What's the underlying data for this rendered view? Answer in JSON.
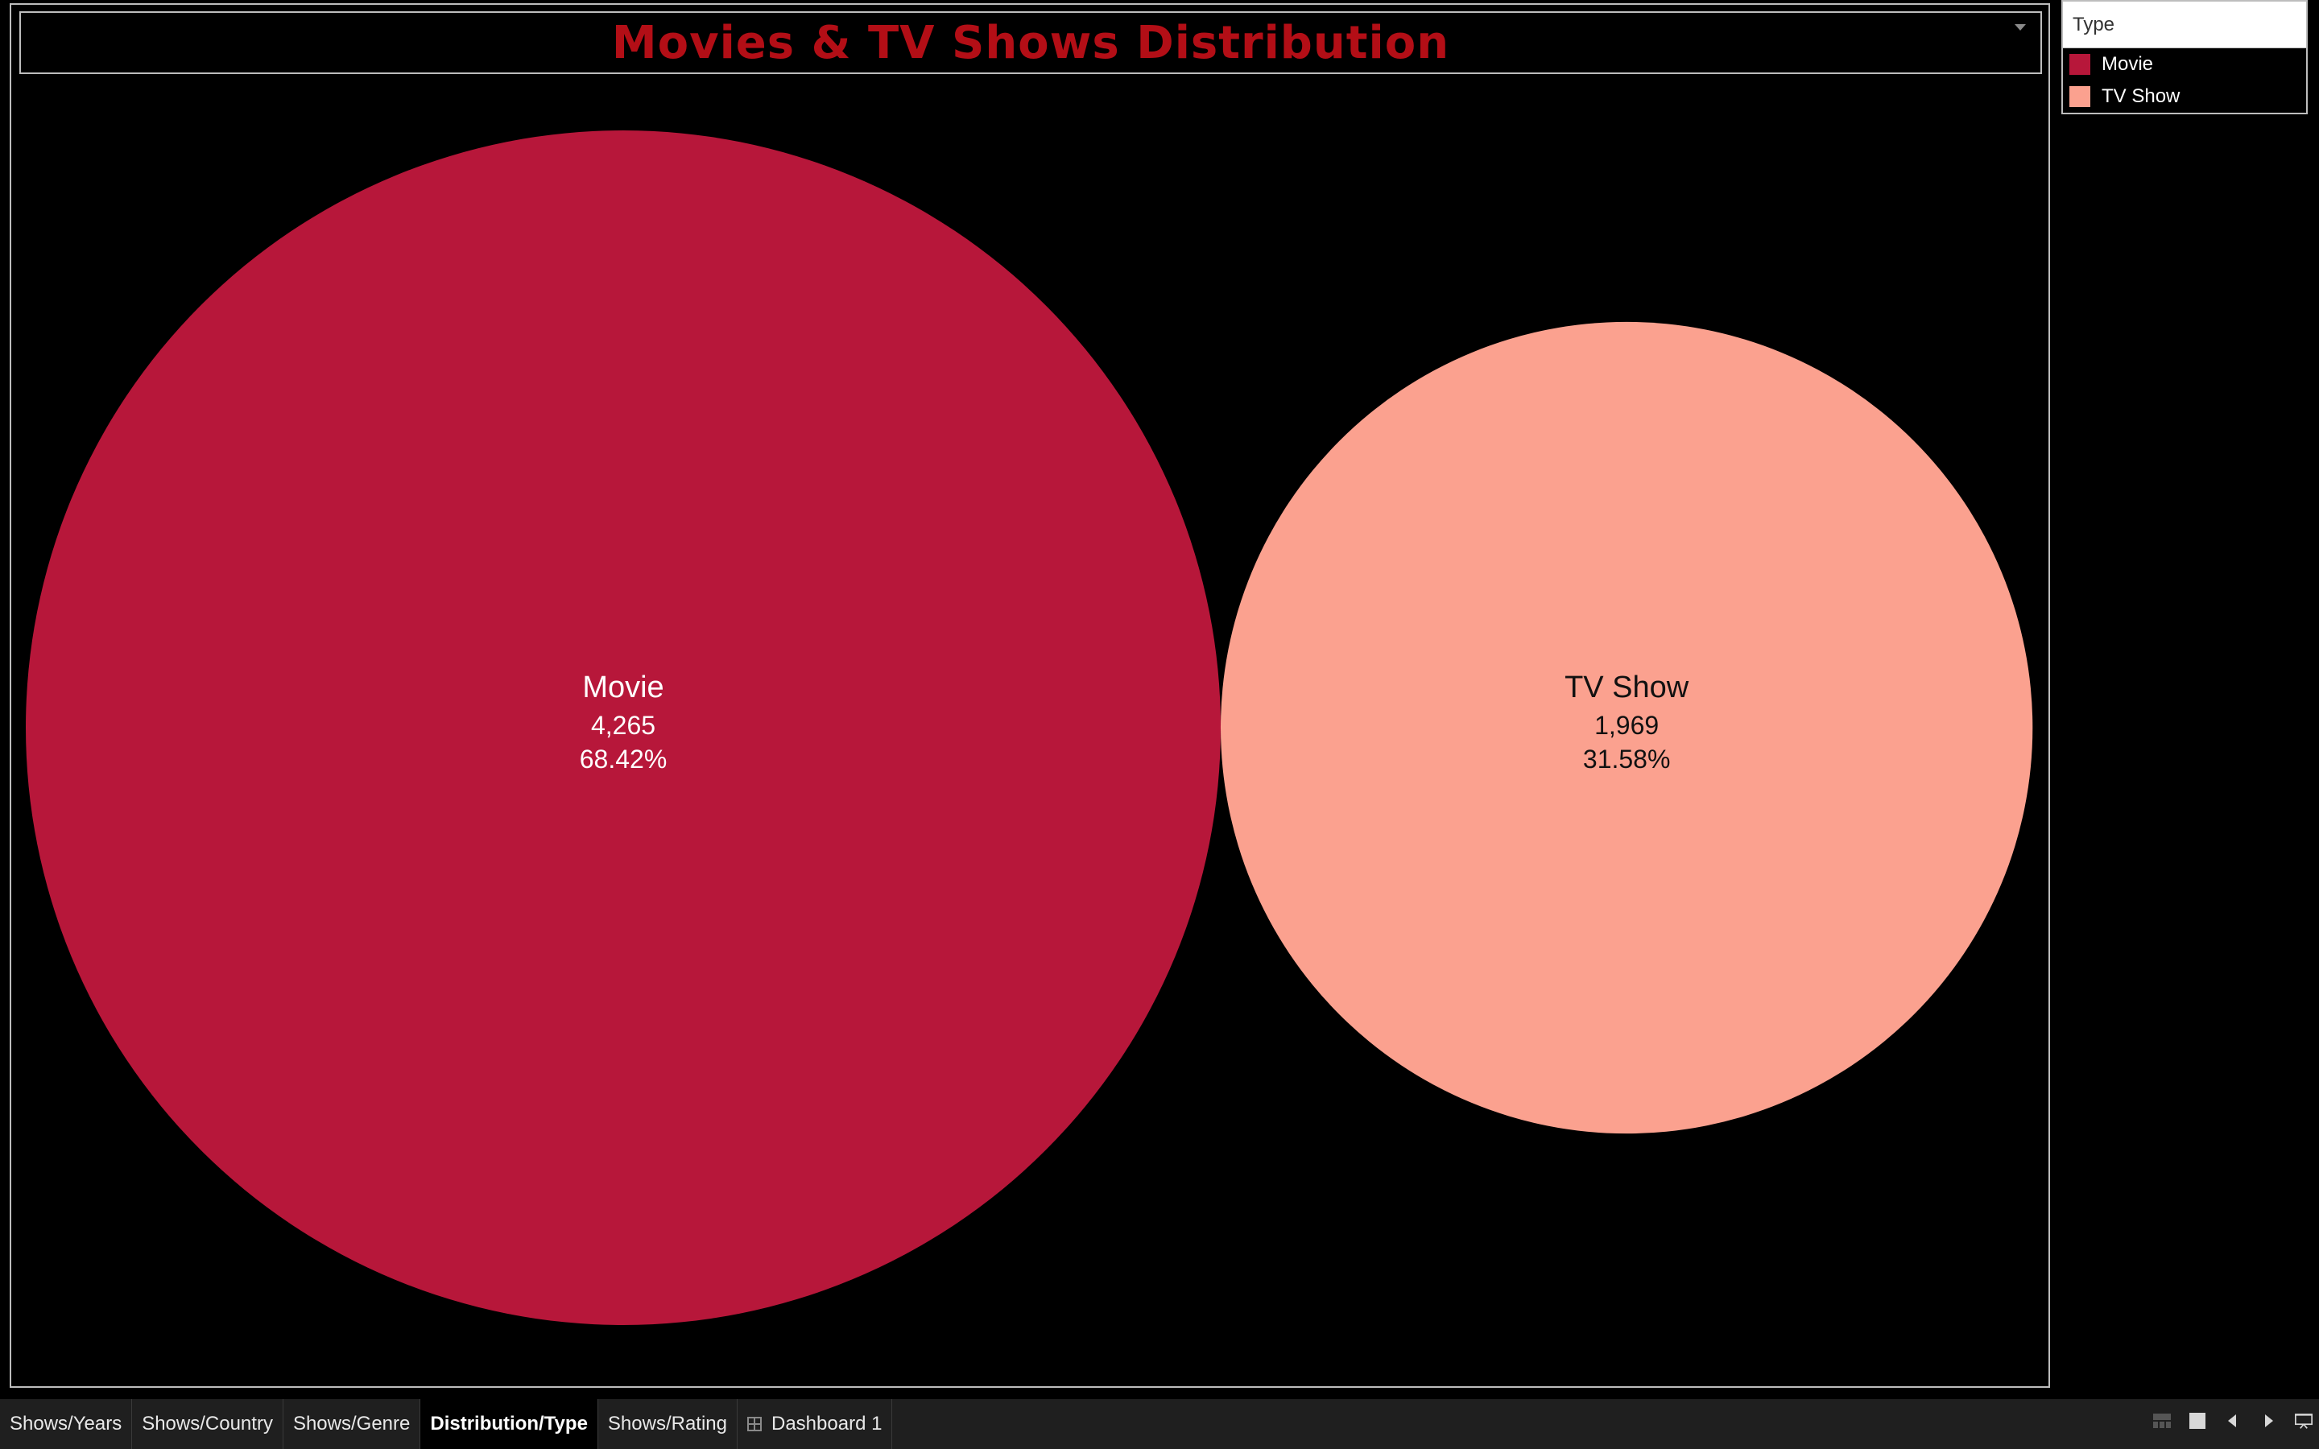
{
  "title": "Movies & TV Shows Distribution",
  "legend": {
    "header": "Type",
    "items": [
      {
        "label": "Movie",
        "color": "#b7173a"
      },
      {
        "label": "TV Show",
        "color": "#fba18f"
      }
    ]
  },
  "chart_data": {
    "type": "packed-bubble",
    "title": "Movies & TV Shows Distribution",
    "series": [
      {
        "name": "Movie",
        "value": 4265,
        "value_label": "4,265",
        "percent_label": "68.42%",
        "color": "#b7173a",
        "label_color": "#ffffff"
      },
      {
        "name": "TV Show",
        "value": 1969,
        "value_label": "1,969",
        "percent_label": "31.58%",
        "color": "#fba18f",
        "label_color": "#111111"
      }
    ]
  },
  "tabs": [
    {
      "label": "Shows/Years",
      "active": false,
      "icon": ""
    },
    {
      "label": "Shows/Country",
      "active": false,
      "icon": ""
    },
    {
      "label": "Shows/Genre",
      "active": false,
      "icon": ""
    },
    {
      "label": "Distribution/Type",
      "active": true,
      "icon": ""
    },
    {
      "label": "Shows/Rating",
      "active": false,
      "icon": ""
    },
    {
      "label": "Dashboard 1",
      "active": false,
      "icon": "dashboard-grid-icon"
    }
  ],
  "status_icons": [
    "sheet-sorter-icon",
    "film-strip-icon",
    "previous-sheet-icon",
    "next-sheet-icon",
    "presentation-mode-icon"
  ]
}
